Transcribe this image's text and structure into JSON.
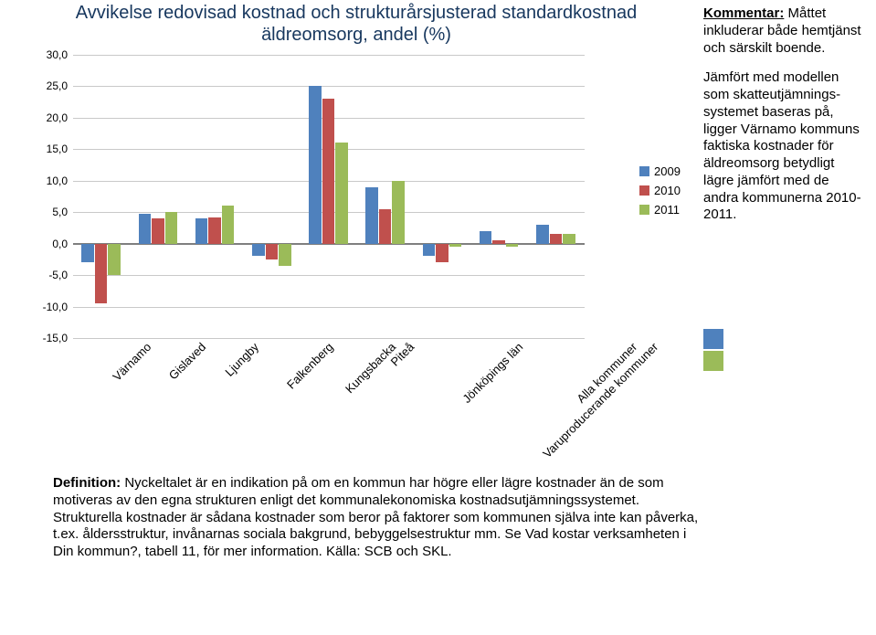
{
  "chart": {
    "type": "bar",
    "title": "Avvikelse redovisad kostnad och strukturårsjusterad standardkostnad äldreomsorg, andel (%)",
    "title_color": "#17375e",
    "title_fontsize": 20,
    "categories": [
      "Värnamo",
      "Gislaved",
      "Ljungby",
      "Falkenberg",
      "Kungsbacka",
      "Piteå",
      "Jönköpings län",
      "Varuproducerande kommuner",
      "Alla kommuner"
    ],
    "series": [
      {
        "name": "2009",
        "color": "#4f81bd",
        "values": [
          -3.0,
          4.8,
          4.0,
          -2.0,
          25.0,
          9.0,
          -2.0,
          2.0,
          3.0
        ]
      },
      {
        "name": "2010",
        "color": "#c0504d",
        "values": [
          -9.5,
          4.0,
          4.2,
          -2.5,
          23.0,
          5.5,
          -3.0,
          0.5,
          1.5
        ]
      },
      {
        "name": "2011",
        "color": "#9bbb59",
        "values": [
          -5.0,
          5.0,
          6.0,
          -3.5,
          16.0,
          10.0,
          -0.5,
          -0.5,
          1.5
        ]
      }
    ],
    "ylim": [
      -15,
      30
    ],
    "ytick_step": 5,
    "grid_color": "#c9c9c9",
    "background_color": "#ffffff",
    "label_fontsize": 12,
    "bar_cluster_gap": 0.3
  },
  "legend": {
    "items": [
      "2009",
      "2010",
      "2011"
    ],
    "colors": [
      "#4f81bd",
      "#c0504d",
      "#9bbb59"
    ]
  },
  "comment": {
    "heading": "Kommentar:",
    "para1": "Måttet inkluderar både hemtjänst och särskilt boende.",
    "para2": "Jämfört med modellen som skatteutjämnings-systemet baseras på, ligger Värnamo kommuns faktiska kostnader för äldreomsorg betydligt lägre jämfört med de andra kommunerna 2010-2011."
  },
  "logo_colors": [
    "#4f81bd",
    "#9bbb59"
  ],
  "definition": {
    "label": "Definition:",
    "text": " Nyckeltalet är en indikation på om en kommun har högre eller lägre kostnader än de som motiveras av den egna strukturen enligt det kommunalekonomiska kostnadsutjämningssystemet. Strukturella kostnader är sådana kostnader som beror på faktorer som kommunen själva inte kan påverka, t.ex. åldersstruktur, invånarnas sociala bakgrund, bebyggelsestruktur mm.  Se Vad kostar verksamheten i Din kommun?, tabell 11, för mer information. Källa: SCB och SKL."
  }
}
